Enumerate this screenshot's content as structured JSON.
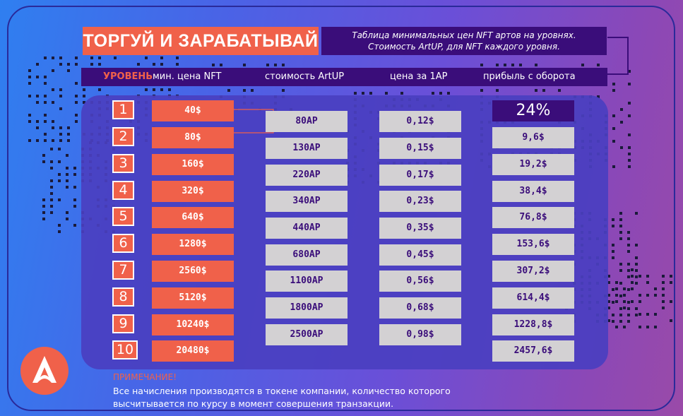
{
  "title": "ТОРГУЙ И ЗАРАБАТЫВАЙ",
  "subtitle": {
    "line1": "Таблица минимальных цен NFT артов на уровнях.",
    "line2": "Стоимость  ArtUP, для NFT каждого уровня."
  },
  "headers": {
    "level": "УРОВЕНЬ",
    "min_price": "мин. цена NFT",
    "cost": "стоимость ArtUP",
    "rate": "цена за  1АР",
    "profit": "прибыль с оборота"
  },
  "percent": "24%",
  "rows": [
    {
      "level": "1",
      "min_price": "40$"
    },
    {
      "level": "2",
      "min_price": "80$"
    },
    {
      "level": "3",
      "min_price": "160$"
    },
    {
      "level": "4",
      "min_price": "320$"
    },
    {
      "level": "5",
      "min_price": "640$"
    },
    {
      "level": "6",
      "min_price": "1280$"
    },
    {
      "level": "7",
      "min_price": "2560$"
    },
    {
      "level": "8",
      "min_price": "5120$"
    },
    {
      "level": "9",
      "min_price": "10240$"
    },
    {
      "level": "10",
      "min_price": "20480$"
    }
  ],
  "costs": [
    "80АР",
    "130АР",
    "220АР",
    "340АР",
    "440АР",
    "680АР",
    "1100АР",
    "1800АР",
    "2500АР"
  ],
  "rates": [
    "0,12$",
    "0,15$",
    "0,17$",
    "0,23$",
    "0,35$",
    "0,45$",
    "0,56$",
    "0,68$",
    "0,98$"
  ],
  "profits": [
    "9,6$",
    "19,2$",
    "38,4$",
    "76,8$",
    "153,6$",
    "307,2$",
    "614,4$",
    "1228,8$",
    "2457,6$"
  ],
  "note": {
    "title": "ПРИМЕЧАНИЕ!",
    "line1": "Все начисления производятся в токене компании, количество которого",
    "line2": "высчитывается по курсу в  момент совершения транзакции."
  },
  "colors": {
    "accent": "#f0614a",
    "dark_purple": "#3a0d7a",
    "gray": "#d3d1d3"
  },
  "icons": {
    "logo": "artup-logo-icon"
  }
}
